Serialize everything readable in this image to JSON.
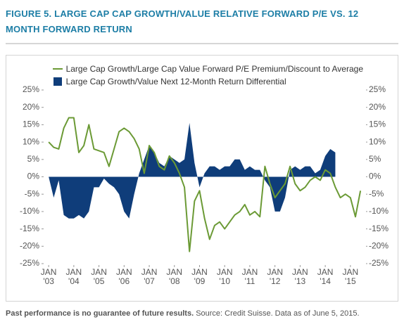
{
  "chart_data": {
    "type": "line-area",
    "title": "FIGURE 5. LARGE CAP CAP GROWTH/VALUE RELATIVE FORWARD P/E VS. 12 MONTH FORWARD RETURN",
    "notes": [
      "Past performance is no guarantee of future results.",
      "Source: Credit Suisse. Data as of June 5, 2015."
    ],
    "x": [
      2003.0,
      2003.2,
      2003.4,
      2003.6,
      2003.8,
      2004.0,
      2004.2,
      2004.4,
      2004.6,
      2004.8,
      2005.0,
      2005.2,
      2005.4,
      2005.6,
      2005.8,
      2006.0,
      2006.2,
      2006.4,
      2006.6,
      2006.8,
      2007.0,
      2007.2,
      2007.4,
      2007.6,
      2007.8,
      2008.0,
      2008.2,
      2008.4,
      2008.6,
      2008.8,
      2009.0,
      2009.2,
      2009.4,
      2009.6,
      2009.8,
      2010.0,
      2010.2,
      2010.4,
      2010.6,
      2010.8,
      2011.0,
      2011.2,
      2011.4,
      2011.6,
      2011.8,
      2012.0,
      2012.2,
      2012.4,
      2012.6,
      2012.8,
      2013.0,
      2013.2,
      2013.4,
      2013.6,
      2013.8,
      2014.0,
      2014.2,
      2014.4,
      2014.6,
      2014.8,
      2015.0,
      2015.2,
      2015.4
    ],
    "series": [
      {
        "name": "Large Cap Growth/Value Next 12-Month Return Differential",
        "kind": "area",
        "color": "#0f3d7a",
        "values": [
          0,
          -6,
          -1,
          -11,
          -12,
          -12,
          -11,
          -12,
          -10,
          -3,
          -3,
          -0.5,
          -2,
          -3,
          -5,
          -10,
          -12,
          -5,
          1,
          5,
          9,
          7,
          4,
          3,
          6,
          5,
          4,
          5,
          15.5,
          4,
          -3,
          1,
          3,
          3,
          2,
          3,
          3,
          5,
          5,
          2,
          3,
          2,
          2,
          -1,
          -3,
          -10,
          -10,
          -6,
          2,
          3,
          2,
          3,
          3,
          1,
          2,
          6,
          8,
          7,
          null,
          null,
          null,
          null,
          null
        ]
      },
      {
        "name": "Large Cap Growth/Large Cap Value Forward P/E Premium/Discount to Average",
        "kind": "line",
        "color": "#6b9a35",
        "values": [
          10,
          8.5,
          8,
          14,
          17,
          17,
          7,
          9,
          15,
          8,
          7.5,
          7,
          3,
          8,
          13,
          14,
          13,
          11,
          8,
          1,
          9,
          7,
          3,
          2,
          6,
          4,
          1,
          -3,
          -21.5,
          -7,
          -4,
          -12,
          -18,
          -14,
          -13,
          -15,
          -13,
          -11,
          -10,
          -8,
          -11,
          -10,
          -11.5,
          3,
          -2,
          -6,
          -4,
          -2,
          3,
          -2,
          -4,
          -3,
          -1,
          0,
          -1,
          2,
          1,
          -3,
          -6,
          -5,
          -6,
          -11.5,
          -4
        ]
      }
    ],
    "xlim": [
      2002.8,
      2015.62
    ],
    "xticks": [
      {
        "value": 2003,
        "label": "JAN '03"
      },
      {
        "value": 2004,
        "label": "JAN '04"
      },
      {
        "value": 2005,
        "label": "JAN '05"
      },
      {
        "value": 2006,
        "label": "JAN '06"
      },
      {
        "value": 2007,
        "label": "JAN '07"
      },
      {
        "value": 2008,
        "label": "JAN '08"
      },
      {
        "value": 2009,
        "label": "JAN '09"
      },
      {
        "value": 2010,
        "label": "JAN '10"
      },
      {
        "value": 2011,
        "label": "JAN '11"
      },
      {
        "value": 2012,
        "label": "JAN '12"
      },
      {
        "value": 2013,
        "label": "JAN '13"
      },
      {
        "value": 2014,
        "label": "JAN '14"
      },
      {
        "value": 2015,
        "label": "JAN '15"
      }
    ],
    "ylim": [
      -25,
      25
    ],
    "yticks": [
      {
        "value": 25,
        "label": "25%"
      },
      {
        "value": 20,
        "label": "20%"
      },
      {
        "value": 15,
        "label": "15%"
      },
      {
        "value": 10,
        "label": "10%"
      },
      {
        "value": 5,
        "label": "5%"
      },
      {
        "value": 0,
        "label": "0%"
      },
      {
        "value": -5,
        "label": "-5%"
      },
      {
        "value": -10,
        "label": "-10%"
      },
      {
        "value": -15,
        "label": "-15%"
      },
      {
        "value": -20,
        "label": "-20%"
      },
      {
        "value": -25,
        "label": "-25%"
      }
    ],
    "legend": "top-right"
  }
}
